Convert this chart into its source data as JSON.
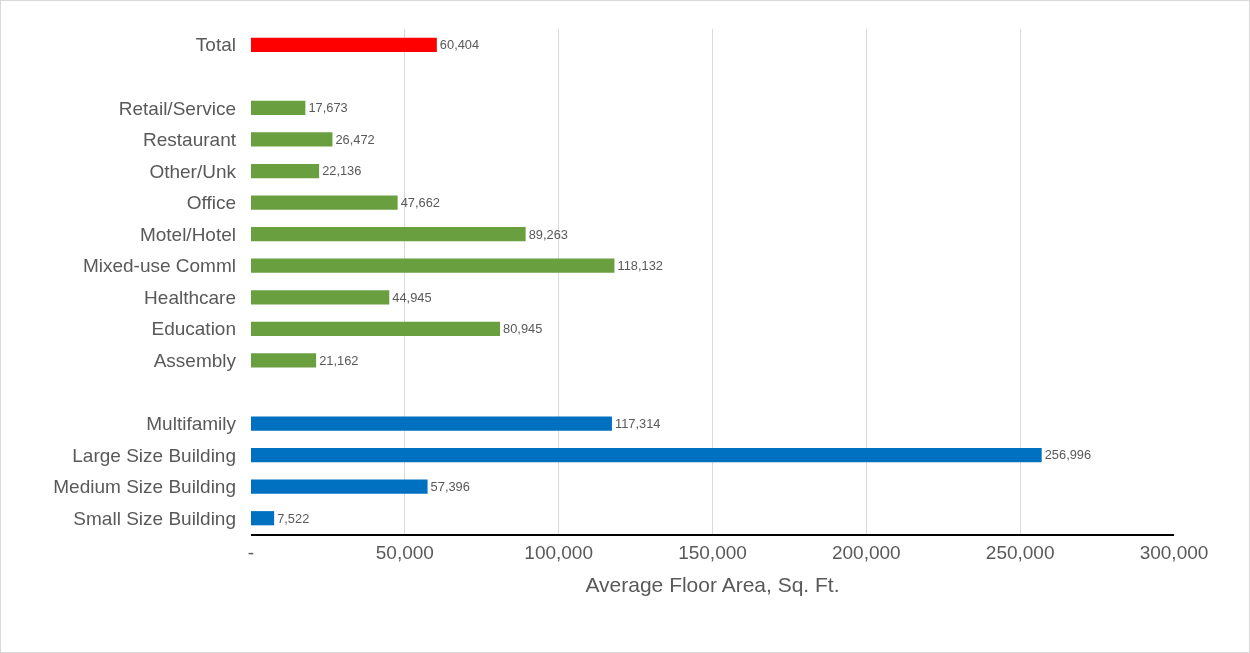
{
  "chart_data": {
    "type": "bar",
    "orientation": "horizontal",
    "xlabel": "Average Floor Area, Sq. Ft.",
    "categories": [
      "Total",
      null,
      "Retail/Service",
      "Restaurant",
      "Other/Unk",
      "Office",
      "Motel/Hotel",
      "Mixed-use Comml",
      "Healthcare",
      "Education",
      "Assembly",
      null,
      "Multifamily",
      "Large Size Building",
      "Medium Size Building",
      "Small Size Building"
    ],
    "values": [
      60404,
      null,
      17673,
      26472,
      22136,
      47662,
      89263,
      118132,
      44945,
      80945,
      21162,
      null,
      117314,
      256996,
      57396,
      7522
    ],
    "colors": [
      "#ff0000",
      null,
      "#6a9f40",
      "#6a9f40",
      "#6a9f40",
      "#6a9f40",
      "#6a9f40",
      "#6a9f40",
      "#6a9f40",
      "#6a9f40",
      "#6a9f40",
      null,
      "#0070c0",
      "#0070c0",
      "#0070c0",
      "#0070c0"
    ],
    "value_labels": [
      "60,404",
      null,
      "17,673",
      "26,472",
      "22,136",
      "47,662",
      "89,263",
      "118,132",
      "44,945",
      "80,945",
      "21,162",
      null,
      "117,314",
      "256,996",
      "57,396",
      "7,522"
    ],
    "xlim": [
      0,
      300000
    ],
    "xticks": [
      {
        "value": 0,
        "label": "-"
      },
      {
        "value": 50000,
        "label": "50,000"
      },
      {
        "value": 100000,
        "label": "100,000"
      },
      {
        "value": 150000,
        "label": "150,000"
      },
      {
        "value": 200000,
        "label": "200,000"
      },
      {
        "value": 250000,
        "label": "250,000"
      },
      {
        "value": 300000,
        "label": "300,000"
      }
    ],
    "grid": "x"
  }
}
